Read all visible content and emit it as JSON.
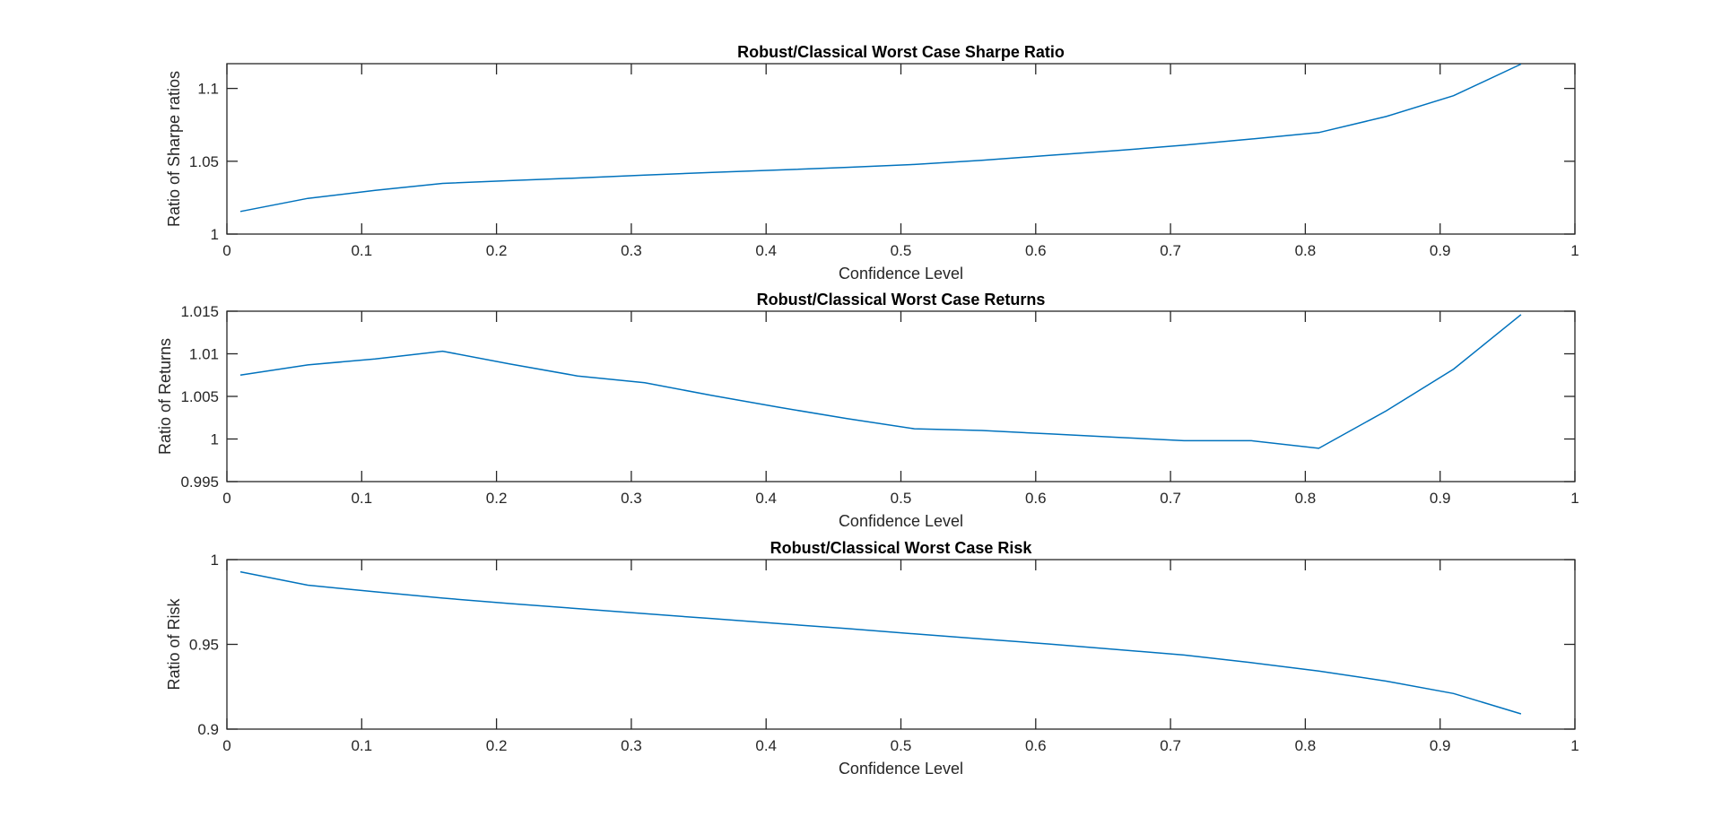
{
  "colors": {
    "series": "#0072BD",
    "axes": "#262626",
    "background": "#ffffff"
  },
  "chart_data": [
    {
      "type": "line",
      "title": "Robust/Classical Worst Case Sharpe Ratio",
      "xlabel": "Confidence Level",
      "ylabel": "Ratio of Sharpe ratios",
      "xlim": [
        0,
        1
      ],
      "ylim": [
        1,
        1.117
      ],
      "xticks": [
        0,
        0.1,
        0.2,
        0.3,
        0.4,
        0.5,
        0.6,
        0.7,
        0.8,
        0.9,
        1
      ],
      "xtick_labels": [
        "0",
        "0.1",
        "0.2",
        "0.3",
        "0.4",
        "0.5",
        "0.6",
        "0.7",
        "0.8",
        "0.9",
        "1"
      ],
      "yticks": [
        1,
        1.05,
        1.1
      ],
      "ytick_labels": [
        "1",
        "1.05",
        "1.1"
      ],
      "grid": false,
      "x": [
        0.01,
        0.06,
        0.11,
        0.16,
        0.21,
        0.26,
        0.31,
        0.36,
        0.41,
        0.46,
        0.51,
        0.56,
        0.61,
        0.66,
        0.71,
        0.76,
        0.81,
        0.86,
        0.91,
        0.96
      ],
      "y": [
        1.0155,
        1.0245,
        1.03,
        1.0348,
        1.0367,
        1.0385,
        1.0405,
        1.0423,
        1.044,
        1.0458,
        1.0478,
        1.0507,
        1.054,
        1.0573,
        1.061,
        1.0653,
        1.0697,
        1.0807,
        1.095,
        1.1167
      ]
    },
    {
      "type": "line",
      "title": "Robust/Classical Worst Case Returns",
      "xlabel": "Confidence Level",
      "ylabel": "Ratio of Returns",
      "xlim": [
        0,
        1
      ],
      "ylim": [
        0.995,
        1.015
      ],
      "xticks": [
        0,
        0.1,
        0.2,
        0.3,
        0.4,
        0.5,
        0.6,
        0.7,
        0.8,
        0.9,
        1
      ],
      "xtick_labels": [
        "0",
        "0.1",
        "0.2",
        "0.3",
        "0.4",
        "0.5",
        "0.6",
        "0.7",
        "0.8",
        "0.9",
        "1"
      ],
      "yticks": [
        0.995,
        1,
        1.005,
        1.01,
        1.015
      ],
      "ytick_labels": [
        "0.995",
        "1",
        "1.005",
        "1.01",
        "1.015"
      ],
      "grid": false,
      "x": [
        0.01,
        0.06,
        0.11,
        0.16,
        0.21,
        0.26,
        0.31,
        0.36,
        0.41,
        0.46,
        0.51,
        0.56,
        0.61,
        0.66,
        0.71,
        0.76,
        0.81,
        0.86,
        0.91,
        0.96
      ],
      "y": [
        1.0075,
        1.0087,
        1.0094,
        1.0103,
        1.0088,
        1.0074,
        1.0066,
        1.0051,
        1.0037,
        1.0024,
        1.0012,
        1.001,
        1.0006,
        1.0002,
        0.9998,
        0.9998,
        0.9989,
        1.0033,
        1.0082,
        1.0146
      ]
    },
    {
      "type": "line",
      "title": "Robust/Classical Worst Case Risk",
      "xlabel": "Confidence Level",
      "ylabel": "Ratio of Risk",
      "xlim": [
        0,
        1
      ],
      "ylim": [
        0.9,
        1
      ],
      "xticks": [
        0,
        0.1,
        0.2,
        0.3,
        0.4,
        0.5,
        0.6,
        0.7,
        0.8,
        0.9,
        1
      ],
      "xtick_labels": [
        "0",
        "0.1",
        "0.2",
        "0.3",
        "0.4",
        "0.5",
        "0.6",
        "0.7",
        "0.8",
        "0.9",
        "1"
      ],
      "yticks": [
        0.9,
        0.95,
        1
      ],
      "ytick_labels": [
        "0.9",
        "0.95",
        "1"
      ],
      "grid": false,
      "x": [
        0.01,
        0.06,
        0.11,
        0.16,
        0.21,
        0.26,
        0.31,
        0.36,
        0.41,
        0.46,
        0.51,
        0.56,
        0.61,
        0.66,
        0.71,
        0.76,
        0.81,
        0.86,
        0.91,
        0.96
      ],
      "y": [
        0.9928,
        0.9849,
        0.981,
        0.9773,
        0.9741,
        0.9711,
        0.9681,
        0.9652,
        0.9622,
        0.9593,
        0.9562,
        0.9532,
        0.9502,
        0.947,
        0.9437,
        0.9392,
        0.9343,
        0.9283,
        0.921,
        0.909
      ]
    }
  ]
}
